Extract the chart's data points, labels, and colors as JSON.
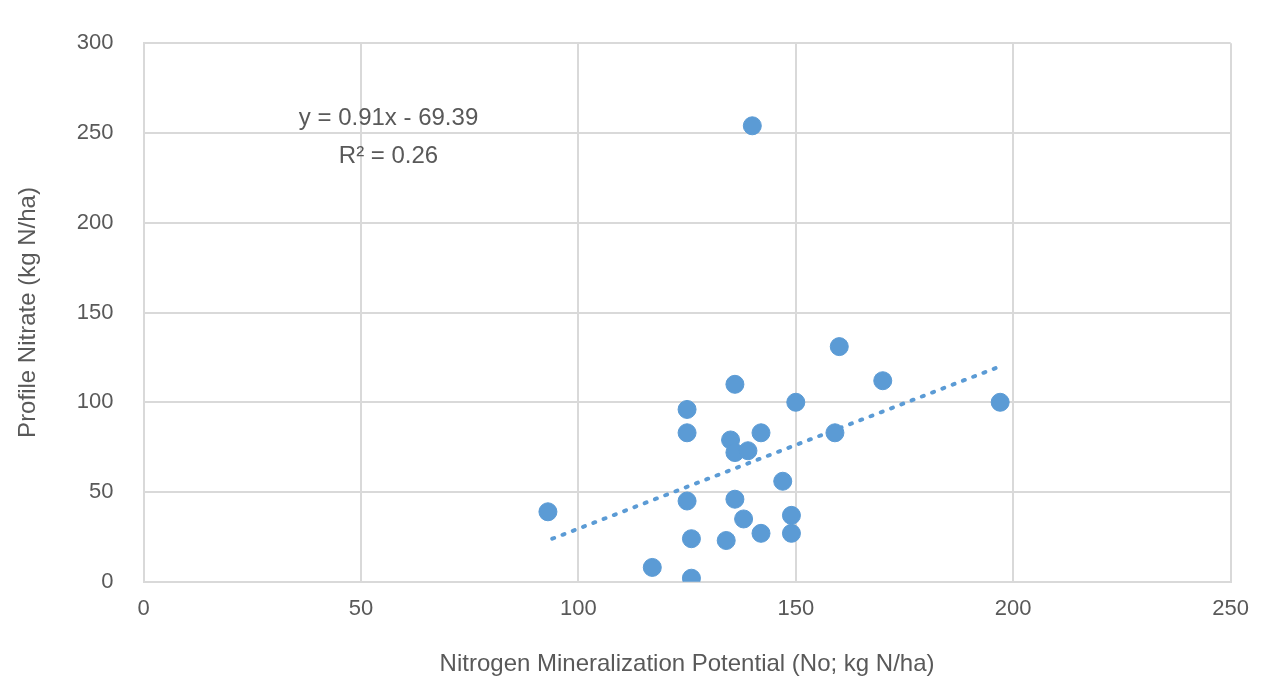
{
  "chart_data": {
    "type": "scatter",
    "xlabel": "Nitrogen Mineralization Potential (No; kg N/ha)",
    "ylabel": "Profile Nitrate (kg N/ha)",
    "xlim": [
      0,
      250
    ],
    "xticks": [
      0,
      50,
      100,
      150,
      200,
      250
    ],
    "ylim": [
      0,
      300
    ],
    "yticks": [
      0,
      50,
      100,
      150,
      200,
      250,
      300
    ],
    "grid": true,
    "legend": false,
    "marker": "circle",
    "series": [
      {
        "type": "scatter",
        "color": "#5b9bd5",
        "x": [
          93,
          117,
          126,
          125,
          125,
          125,
          126,
          134,
          135,
          136,
          136,
          136,
          139,
          138,
          142,
          142,
          140,
          147,
          149,
          149,
          150,
          159,
          160,
          170,
          197
        ],
        "values": [
          39,
          8,
          2,
          96,
          83,
          45,
          24,
          23,
          79,
          110,
          46,
          72,
          73,
          35,
          27,
          83,
          254,
          56,
          37,
          27,
          100,
          83,
          131,
          112,
          100
        ]
      },
      {
        "type": "line",
        "color": "#5b9bd5",
        "line_style": "dotted",
        "marker": "none",
        "x": [
          94,
          197
        ],
        "values": [
          24,
          120
        ]
      }
    ],
    "annotations": [
      "y = 0.91x - 69.39",
      "R² = 0.26"
    ]
  }
}
